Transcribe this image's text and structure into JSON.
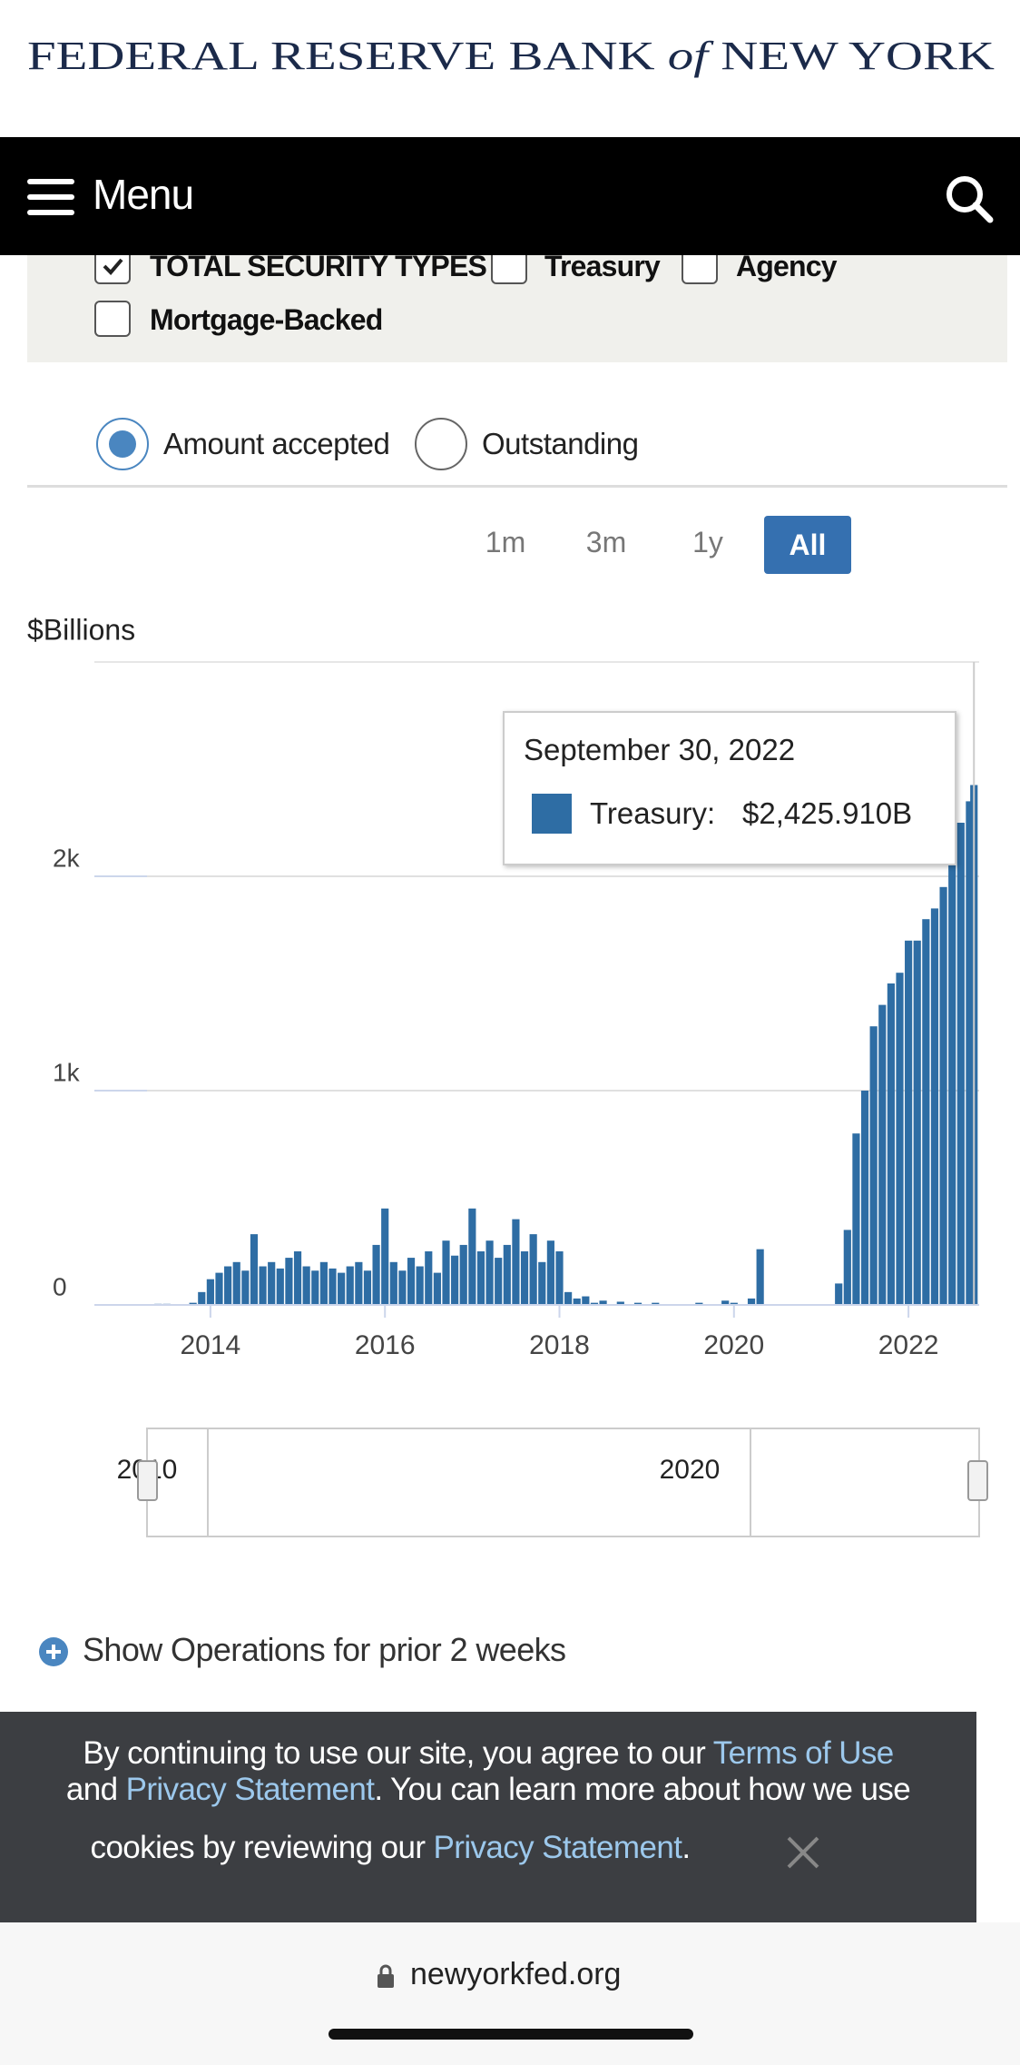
{
  "header": {
    "title_a": "FEDERAL RESERVE BANK",
    "title_of": "of",
    "title_b": "NEW YORK"
  },
  "nav": {
    "menu": "Menu"
  },
  "filters": {
    "checkboxes": [
      "TOTAL SECURITY TYPES",
      "Treasury",
      "Agency",
      "Mortgage-Backed"
    ],
    "radios": [
      "Amount accepted",
      "Outstanding"
    ],
    "ranges": [
      "1m",
      "3m",
      "1y",
      "All"
    ]
  },
  "chart_data": {
    "type": "bar",
    "y_label": "$Billions",
    "x": [
      2013.4,
      2013.5,
      2013.6,
      2013.7,
      2013.8,
      2013.9,
      2014.0,
      2014.1,
      2014.2,
      2014.3,
      2014.4,
      2014.5,
      2014.6,
      2014.7,
      2014.8,
      2014.9,
      2015.0,
      2015.1,
      2015.2,
      2015.3,
      2015.4,
      2015.5,
      2015.6,
      2015.7,
      2015.8,
      2015.9,
      2016.0,
      2016.1,
      2016.2,
      2016.3,
      2016.4,
      2016.5,
      2016.6,
      2016.7,
      2016.8,
      2016.9,
      2017.0,
      2017.1,
      2017.2,
      2017.3,
      2017.4,
      2017.5,
      2017.6,
      2017.7,
      2017.8,
      2017.9,
      2018.0,
      2018.1,
      2018.2,
      2018.3,
      2018.4,
      2018.5,
      2018.6,
      2018.7,
      2018.8,
      2018.9,
      2019.0,
      2019.1,
      2019.2,
      2019.3,
      2019.4,
      2019.5,
      2019.6,
      2019.7,
      2019.8,
      2019.9,
      2020.0,
      2020.1,
      2020.2,
      2020.3,
      2020.4,
      2020.5,
      2020.6,
      2020.7,
      2020.8,
      2020.9,
      2021.0,
      2021.1,
      2021.2,
      2021.3,
      2021.4,
      2021.5,
      2021.6,
      2021.7,
      2021.8,
      2021.9,
      2022.0,
      2022.1,
      2022.2,
      2022.3,
      2022.4,
      2022.5,
      2022.6,
      2022.7,
      2022.75
    ],
    "series": [
      {
        "name": "Treasury",
        "color": "#2e6da4",
        "values": [
          5,
          5,
          0,
          0,
          10,
          60,
          120,
          150,
          180,
          200,
          160,
          330,
          180,
          200,
          170,
          220,
          250,
          180,
          160,
          200,
          170,
          150,
          180,
          200,
          160,
          280,
          450,
          200,
          160,
          220,
          180,
          250,
          150,
          300,
          230,
          280,
          450,
          250,
          300,
          220,
          280,
          400,
          250,
          330,
          200,
          300,
          250,
          60,
          30,
          40,
          10,
          20,
          0,
          15,
          0,
          10,
          0,
          10,
          0,
          0,
          0,
          0,
          10,
          0,
          0,
          20,
          10,
          0,
          30,
          260,
          0,
          0,
          0,
          0,
          0,
          0,
          0,
          0,
          100,
          350,
          800,
          1000,
          1300,
          1400,
          1500,
          1550,
          1700,
          1700,
          1800,
          1850,
          1950,
          2150,
          2250,
          2350,
          2425.91
        ]
      }
    ],
    "xlim": [
      2012.67,
      2022.81
    ],
    "xticks": [
      2014,
      2016,
      2018,
      2020,
      2022
    ],
    "ylim": [
      0,
      3000
    ],
    "yticks": [
      0,
      {
        "value": 1000,
        "label": "1k"
      },
      {
        "value": 2000,
        "label": "2k"
      }
    ],
    "grid": true,
    "tooltip": {
      "title": "September 30, 2022",
      "label": "Treasury:",
      "value": "$2,425.910B"
    },
    "navigator": {
      "labels": [
        "2010",
        "2020"
      ]
    }
  },
  "more": {
    "text": "Show Operations for prior 2 weeks"
  },
  "cookie": {
    "line1": "By continuing to use our site, you agree to our",
    "link1": "Terms of Use",
    "line2a": "and",
    "link2": "Privacy Statement",
    "line2b": ". You can learn more about how we use",
    "line3a": "cookies by reviewing our",
    "link3": "Privacy Statement",
    "line3b": "."
  },
  "browser": {
    "url": "newyorkfed.org"
  }
}
